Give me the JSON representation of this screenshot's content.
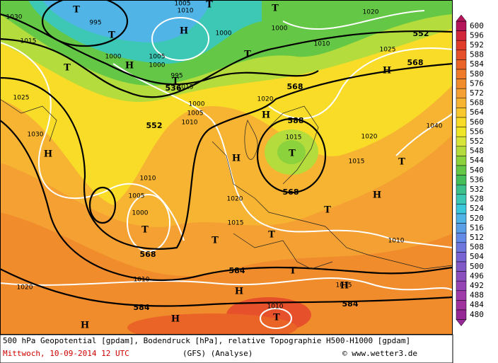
{
  "map": {
    "geopotential_labels": [
      552,
      568,
      536,
      552,
      568,
      588,
      568,
      568,
      584,
      584,
      584
    ],
    "pressure_labels": [
      1030,
      1015,
      995,
      1005,
      1010,
      1000,
      1000,
      1010,
      1020,
      1025,
      1000,
      1005,
      1000,
      995,
      1015,
      1000,
      1005,
      1010,
      1020,
      1025,
      1030,
      1015,
      1020,
      1015,
      1040,
      1010,
      1005,
      1000,
      1020,
      1015,
      1010,
      1010,
      1020,
      1015,
      1010
    ],
    "centers": [
      "T",
      "T",
      "H",
      "T",
      "T",
      "T",
      "H",
      "T",
      "T",
      "H",
      "H",
      "T",
      "H",
      "H",
      "T",
      "H",
      "T",
      "T",
      "T",
      "T",
      "T",
      "H",
      "H",
      "H",
      "T",
      "H"
    ],
    "legend": {
      "levels": [
        600,
        596,
        592,
        588,
        584,
        580,
        576,
        572,
        568,
        564,
        560,
        556,
        552,
        548,
        544,
        540,
        536,
        532,
        528,
        524,
        520,
        516,
        512,
        508,
        504,
        500,
        496,
        492,
        488,
        484,
        480
      ],
      "colors": [
        "#b4145a",
        "#d2283c",
        "#e03c28",
        "#e6502a",
        "#ea6428",
        "#ee7a2a",
        "#f08c2c",
        "#f4a032",
        "#f6b432",
        "#f8c82e",
        "#f8dc28",
        "#f0e628",
        "#d8e63c",
        "#b4dc3c",
        "#8cd23c",
        "#64c846",
        "#46be5a",
        "#3cc08c",
        "#3cc8b4",
        "#3cc8dc",
        "#50b4e6",
        "#5aa0e6",
        "#648ce6",
        "#6e78dc",
        "#7864d2",
        "#825ac8",
        "#8c50be",
        "#9646b4",
        "#a03caa",
        "#a032a0",
        "#962896"
      ]
    },
    "footer": {
      "description": "500 hPa Geopotential [gpdam], Bodendruck [hPa], relative Topographie H500-H1000 [gpdam]",
      "date": "Mittwoch, 10-09-2014  12 UTC",
      "model": "(GFS)   (Analyse)",
      "source": "© www.wetter3.de"
    }
  }
}
